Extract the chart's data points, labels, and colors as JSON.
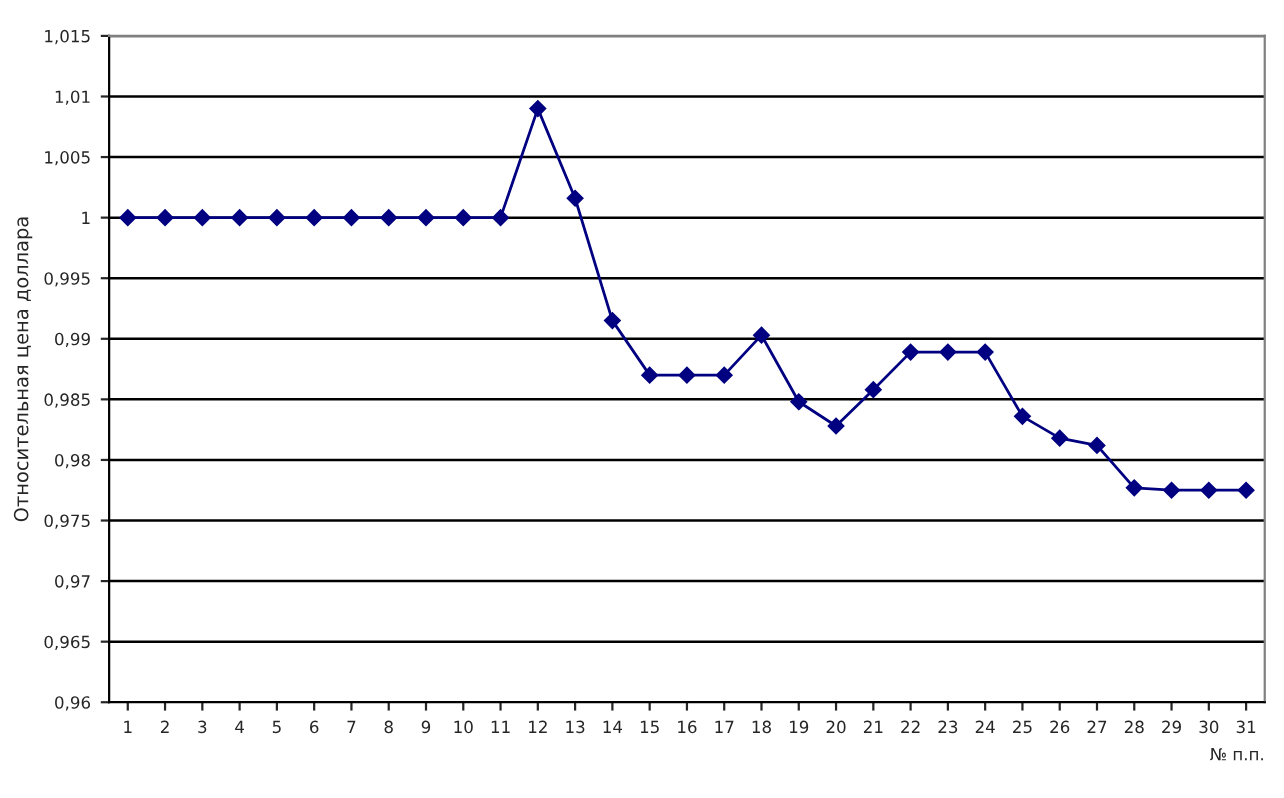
{
  "chart_data": {
    "type": "line",
    "xlabel": "№ п.п.",
    "ylabel": "Относительная цена доллара",
    "categories": [
      "1",
      "2",
      "3",
      "4",
      "5",
      "6",
      "7",
      "8",
      "9",
      "10",
      "11",
      "12",
      "13",
      "14",
      "15",
      "16",
      "17",
      "18",
      "19",
      "20",
      "21",
      "22",
      "23",
      "24",
      "25",
      "26",
      "27",
      "28",
      "29",
      "30",
      "31"
    ],
    "series": [
      {
        "color": "#000080",
        "values": [
          1,
          1,
          1,
          1,
          1,
          1,
          1,
          1,
          1,
          1,
          1,
          1.009,
          1.0016,
          0.9915,
          0.987,
          0.987,
          0.987,
          0.9903,
          0.9848,
          0.9828,
          0.9858,
          0.9889,
          0.9889,
          0.9889,
          0.9836,
          0.9818,
          0.9812,
          0.9777,
          0.9775,
          0.9775,
          0.9775
        ]
      }
    ],
    "ylim": [
      0.96,
      1.015
    ],
    "yticks": [
      {
        "value": 0.96,
        "label": "0,96"
      },
      {
        "value": 0.965,
        "label": "0,965"
      },
      {
        "value": 0.97,
        "label": "0,97"
      },
      {
        "value": 0.975,
        "label": "0,975"
      },
      {
        "value": 0.98,
        "label": "0,98"
      },
      {
        "value": 0.985,
        "label": "0,985"
      },
      {
        "value": 0.99,
        "label": "0,99"
      },
      {
        "value": 0.995,
        "label": "0,995"
      },
      {
        "value": 1,
        "label": "1"
      },
      {
        "value": 1.005,
        "label": "1,005"
      },
      {
        "value": 1.01,
        "label": "1,01"
      },
      {
        "value": 1.015,
        "label": "1,015"
      }
    ],
    "grid": "y",
    "marker": "diamond",
    "line_style": "solid"
  }
}
